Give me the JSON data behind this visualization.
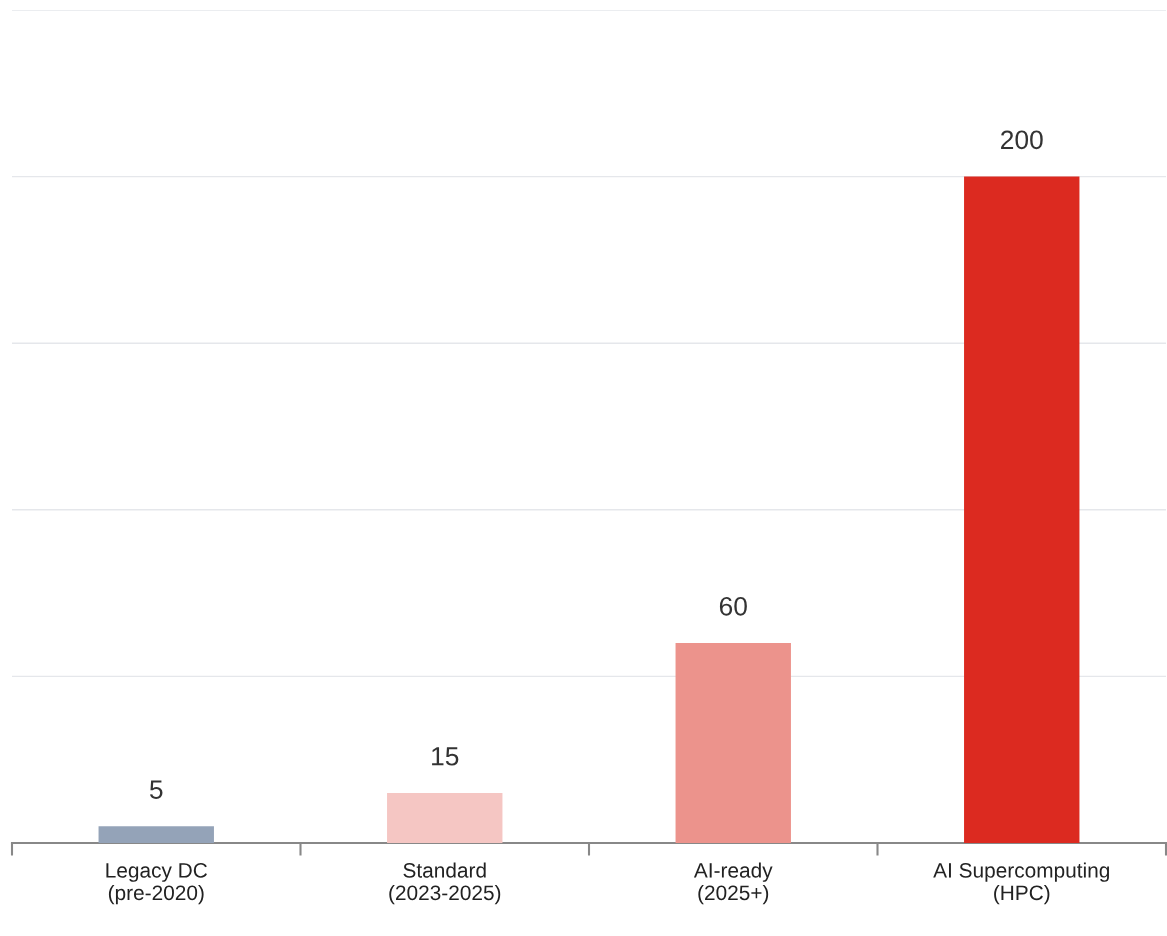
{
  "chart_data": {
    "type": "bar",
    "categories": [
      "Legacy DC\n(pre-2020)",
      "Standard\n(2023-2025)",
      "AI-ready\n(2025+)",
      "AI Supercomputing\n(HPC)"
    ],
    "values": [
      5,
      15,
      60,
      200
    ],
    "colors": [
      "#94a3b8",
      "#f5c6c3",
      "#ec938c",
      "#dc2a20"
    ],
    "ylim": [
      0,
      250
    ],
    "yticks": [
      {
        "value": 0,
        "label": null
      },
      {
        "value": 50,
        "label": null
      },
      {
        "value": 100,
        "label": null
      },
      {
        "value": 150,
        "label": null
      },
      {
        "value": 200,
        "label": null
      },
      {
        "value": 250,
        "label": null
      }
    ],
    "tick_labels": "x",
    "grid": "y",
    "data_labels": true
  }
}
